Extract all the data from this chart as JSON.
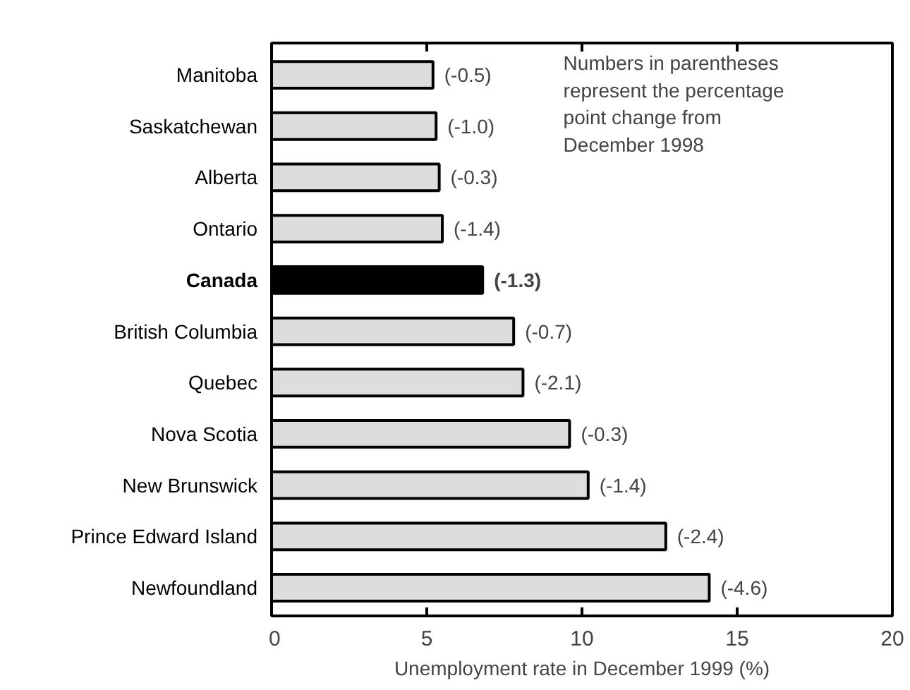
{
  "chart_data": {
    "type": "bar",
    "orientation": "horizontal",
    "categories": [
      "Manitoba",
      "Saskatchewan",
      "Alberta",
      "Ontario",
      "Canada",
      "British Columbia",
      "Quebec",
      "Nova Scotia",
      "New Brunswick",
      "Prince Edward Island",
      "Newfoundland"
    ],
    "values": [
      5.2,
      5.3,
      5.4,
      5.5,
      6.8,
      7.8,
      8.1,
      9.6,
      10.2,
      12.7,
      14.1
    ],
    "colors": [
      "#dddddd",
      "#dddddd",
      "#dddddd",
      "#dddddd",
      "#000000",
      "#dddddd",
      "#dddddd",
      "#dddddd",
      "#dddddd",
      "#dddddd",
      "#dddddd"
    ],
    "xlabel": "Unemployment rate in December 1999 (%)",
    "xlim": [
      0,
      20
    ],
    "xticks": [
      0,
      5,
      10,
      15,
      20
    ],
    "annotations": [
      "Numbers in parentheses\nrepresent the percentage\npoint change from\nDecember 1998",
      {
        "text": "(-0.5)",
        "x": 5.2,
        "y": "Manitoba"
      },
      {
        "text": "(-1.0)",
        "x": 5.3,
        "y": "Saskatchewan"
      },
      {
        "text": "(-0.3)",
        "x": 5.4,
        "y": "Alberta"
      },
      {
        "text": "(-1.4)",
        "x": 5.5,
        "y": "Ontario"
      },
      {
        "text": "(-1.3)",
        "x": 6.8,
        "y": "Canada"
      },
      {
        "text": "(-0.7)",
        "x": 7.8,
        "y": "British Columbia"
      },
      {
        "text": "(-2.1)",
        "x": 8.1,
        "y": "Quebec"
      },
      {
        "text": "(-0.3)",
        "x": 9.6,
        "y": "Nova Scotia"
      },
      {
        "text": "(-1.4)",
        "x": 10.2,
        "y": "New Brunswick"
      },
      {
        "text": "(-2.4)",
        "x": 12.7,
        "y": "Prince Edward Island"
      },
      {
        "text": "(-4.6)",
        "x": 14.1,
        "y": "Newfoundland"
      }
    ],
    "grid": false
  }
}
